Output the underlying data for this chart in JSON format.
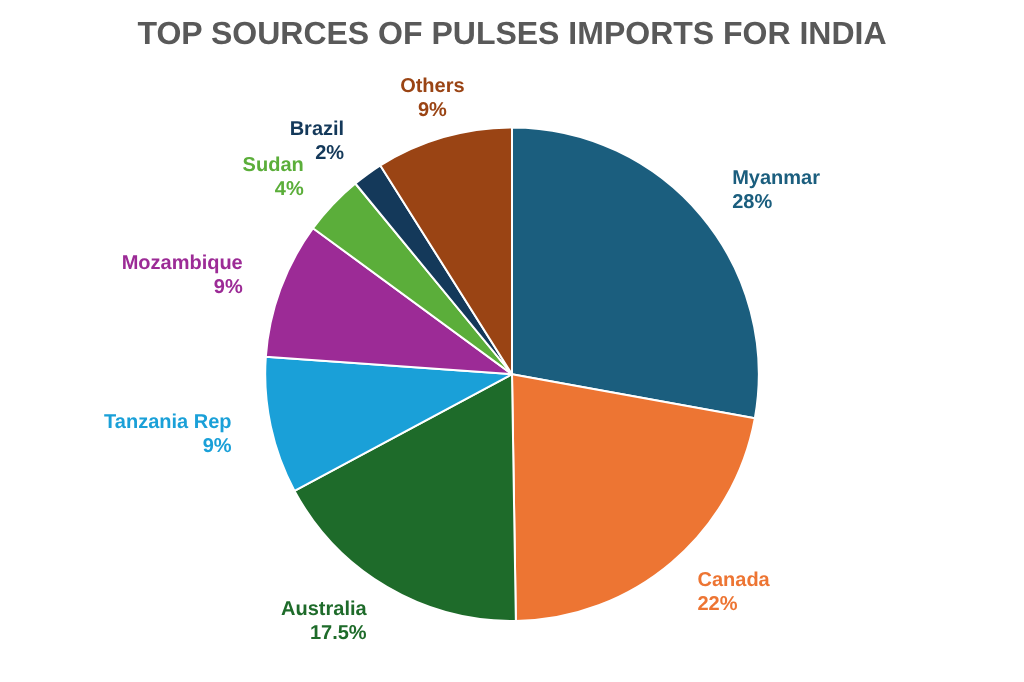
{
  "chart_data": {
    "type": "pie",
    "title": "TOP SOURCES OF PULSES IMPORTS FOR INDIA",
    "categories": [
      "Myanmar",
      "Canada",
      "Australia",
      "Tanzania Rep",
      "Mozambique",
      "Sudan",
      "Brazil",
      "Others"
    ],
    "values": [
      28,
      22,
      17.5,
      9,
      9,
      4,
      2,
      9
    ],
    "value_labels": [
      "28%",
      "22%",
      "17.5%",
      "9%",
      "9%",
      "4%",
      "2%",
      "9%"
    ],
    "colors": [
      "#1b5e7e",
      "#ed7533",
      "#1e6b2a",
      "#1aa0d8",
      "#9c2b96",
      "#5bae3a",
      "#14395a",
      "#9a4414"
    ],
    "legend": false
  }
}
